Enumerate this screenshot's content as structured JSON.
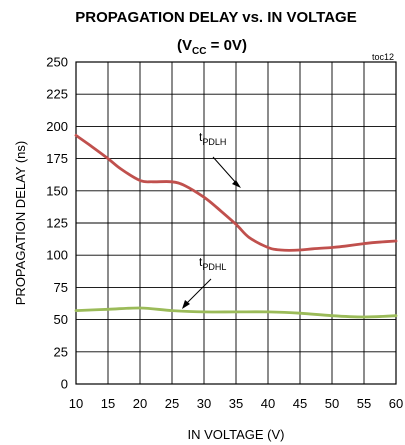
{
  "chart_data": {
    "type": "line",
    "title_line1": "PROPAGATION DELAY vs. IN VOLTAGE",
    "title_line2": {
      "prefix": "(V",
      "subscript": "CC",
      "suffix": " = 0V)"
    },
    "figure_code": "toc12",
    "xlabel": "IN VOLTAGE (V)",
    "ylabel": "PROPAGATION DELAY (ns)",
    "xlim": [
      10,
      60
    ],
    "ylim": [
      0,
      250
    ],
    "xticks": [
      "10",
      "15",
      "20",
      "25",
      "30",
      "35",
      "40",
      "45",
      "50",
      "55",
      "60"
    ],
    "yticks": [
      "0",
      "25",
      "50",
      "75",
      "100",
      "125",
      "150",
      "175",
      "200",
      "225",
      "250"
    ],
    "grid": true,
    "series": [
      {
        "name": "tPDLH",
        "label_main": "t",
        "label_sub": "PDLH",
        "color": "#c0504d",
        "x": [
          10,
          12,
          15,
          17,
          20,
          22,
          25,
          27,
          30,
          32,
          35,
          37,
          40,
          42,
          45,
          47,
          50,
          52,
          55,
          57,
          60
        ],
        "y": [
          193,
          186,
          175,
          167,
          158,
          157,
          157,
          154,
          145,
          137,
          124,
          114,
          106,
          104,
          104,
          105,
          106,
          107,
          109,
          110,
          111
        ]
      },
      {
        "name": "tPDHL",
        "label_main": "t",
        "label_sub": "PDHL",
        "color": "#9bbb59",
        "x": [
          10,
          15,
          20,
          25,
          30,
          35,
          40,
          45,
          50,
          55,
          60
        ],
        "y": [
          57,
          58,
          59,
          57,
          56,
          56,
          56,
          55,
          53,
          52,
          53
        ]
      }
    ]
  }
}
